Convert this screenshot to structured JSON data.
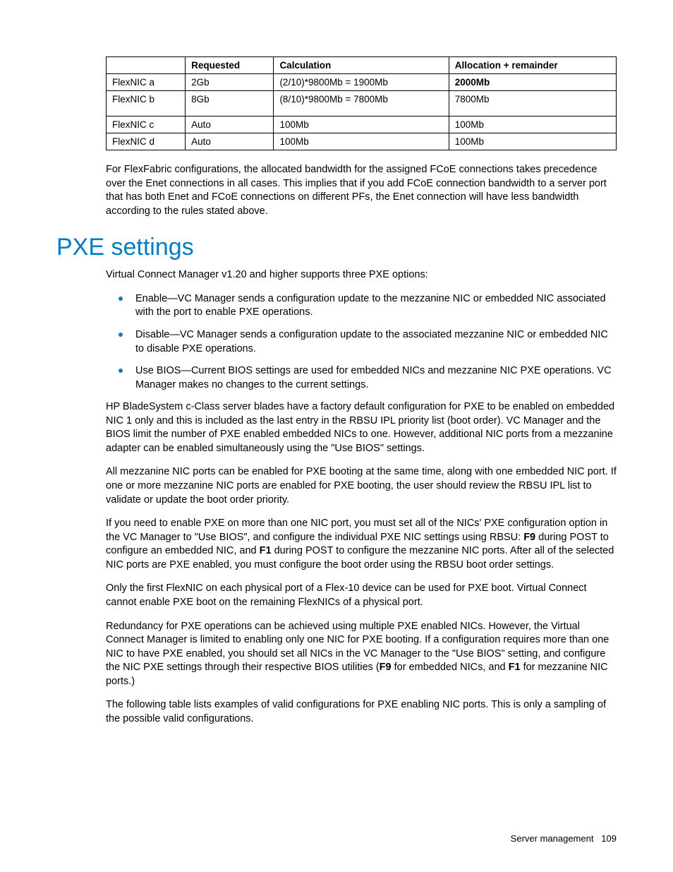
{
  "table": {
    "headers": [
      "",
      "Requested",
      "Calculation",
      "Allocation + remainder"
    ],
    "rows": [
      {
        "cells": [
          "FlexNIC a",
          "2Gb",
          "(2/10)*9800Mb = 1900Mb",
          "2000Mb"
        ],
        "bold_last": true,
        "tall": false
      },
      {
        "cells": [
          "FlexNIC b",
          "8Gb",
          "(8/10)*9800Mb = 7800Mb",
          "7800Mb"
        ],
        "bold_last": false,
        "tall": true
      },
      {
        "cells": [
          "FlexNIC c",
          "Auto",
          "100Mb",
          "100Mb"
        ],
        "bold_last": false,
        "tall": false
      },
      {
        "cells": [
          "FlexNIC d",
          "Auto",
          "100Mb",
          "100Mb"
        ],
        "bold_last": false,
        "tall": false
      }
    ]
  },
  "para_flexfabric": "For FlexFabric configurations, the allocated bandwidth for the assigned FCoE connections takes precedence over the Enet connections in all cases. This implies that if you add FCoE connection bandwidth to a server port that has both Enet and FCoE connections on different PFs, the Enet connection will have less bandwidth according to the rules stated above.",
  "heading_pxe": "PXE settings",
  "para_pxe_intro": "Virtual Connect Manager v1.20 and higher supports three PXE options:",
  "bullets": [
    "Enable—VC Manager sends a configuration update to the mezzanine NIC or embedded NIC associated with the port to enable PXE operations.",
    "Disable—VC Manager sends a configuration update to the associated mezzanine NIC or embedded NIC to disable PXE operations.",
    "Use BIOS—Current BIOS settings are used for embedded NICs and mezzanine NIC PXE operations. VC Manager makes no changes to the current settings."
  ],
  "para_blade": "HP BladeSystem c-Class server blades have a factory default configuration for PXE to be enabled on embedded NIC 1 only and this is included as the last entry in the RBSU IPL priority list (boot order). VC Manager and the BIOS limit the number of PXE enabled embedded NICs to one. However, additional NIC ports from a mezzanine adapter can be enabled simultaneously using the \"Use BIOS\" settings.",
  "para_mezz": "All mezzanine NIC ports can be enabled for PXE booting at the same time, along with one embedded NIC port. If one or more mezzanine NIC ports are enabled for PXE booting, the user should review the RBSU IPL list to validate or update the boot order priority.",
  "para_multi": {
    "p1": "If you need to enable PXE on more than one NIC port, you must set all of the NICs' PXE configuration option in the VC Manager to \"Use BIOS\", and configure the individual PXE NIC settings using RBSU: ",
    "b1": "F9",
    "p2": " during POST to configure an embedded NIC, and ",
    "b2": "F1",
    "p3": " during POST to configure the mezzanine NIC ports. After all of the selected NIC ports are PXE enabled, you must configure the boot order using the RBSU boot order settings."
  },
  "para_first_flexnic": "Only the first FlexNIC on each physical port of a Flex-10 device can be used for PXE boot. Virtual Connect cannot enable PXE boot on the remaining FlexNICs of a physical port.",
  "para_redundancy": {
    "p1": "Redundancy for PXE operations can be achieved using multiple PXE enabled NICs. However, the Virtual Connect Manager is limited to enabling only one NIC for PXE booting. If a configuration requires more than one NIC to have PXE enabled, you should set all NICs in the VC Manager to the \"Use BIOS\" setting, and configure the NIC PXE settings through their respective BIOS utilities (",
    "b1": "F9",
    "p2": " for embedded NICs, and ",
    "b2": "F1",
    "p3": " for mezzanine NIC ports.)"
  },
  "para_following_table": "The following table lists examples of valid configurations for PXE enabling NIC ports. This is only a sampling of the possible valid configurations.",
  "footer_section": "Server management",
  "footer_page": "109",
  "colors": {
    "accent": "#007cc1",
    "text": "#000000",
    "background": "#ffffff",
    "border": "#000000"
  }
}
